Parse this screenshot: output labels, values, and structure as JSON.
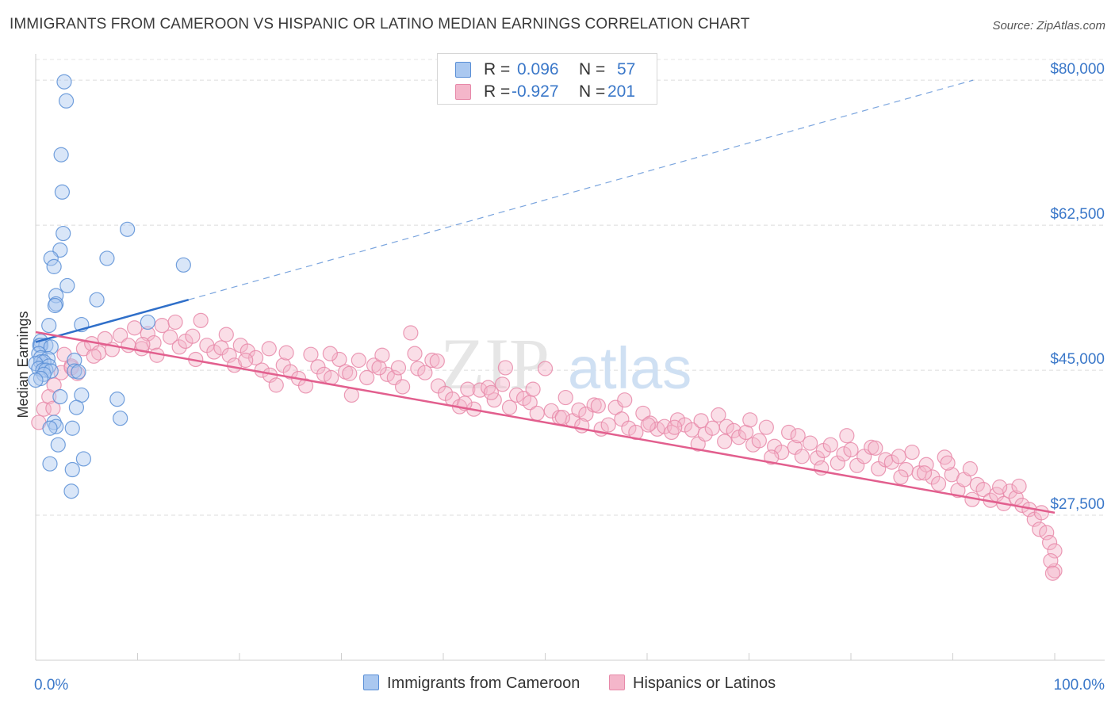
{
  "title": "IMMIGRANTS FROM CAMEROON VS HISPANIC OR LATINO MEDIAN EARNINGS CORRELATION CHART",
  "source": "Source: ZipAtlas.com",
  "watermark": {
    "zip": "ZIP",
    "atlas": "atlas"
  },
  "legend": {
    "rows": [
      {
        "r_label": "R =",
        "r_value": "0.096",
        "n_label": "N =",
        "n_value": "57"
      },
      {
        "r_label": "R =",
        "r_value": "-0.927",
        "n_label": "N =",
        "n_value": "201"
      }
    ]
  },
  "bottom_legend": {
    "series1": "Immigrants from Cameroon",
    "series2": "Hispanics or Latinos"
  },
  "colors": {
    "blue_fill": "#aac8f0",
    "blue_stroke": "#5a8fd6",
    "blue_line": "#2f6fc9",
    "pink_fill": "#f4b6ca",
    "pink_stroke": "#e789a9",
    "pink_line": "#e25f8e",
    "axis_label": "#3b78c9"
  },
  "chart_data": {
    "type": "scatter",
    "title": "IMMIGRANTS FROM CAMEROON VS HISPANIC OR LATINO MEDIAN EARNINGS CORRELATION CHART",
    "xlabel": "",
    "ylabel": "Median Earnings",
    "xlim": [
      0,
      100
    ],
    "ylim": [
      10000,
      82500
    ],
    "x_tick_labels": [
      "0.0%",
      "100.0%"
    ],
    "y_ticks": [
      27500,
      45000,
      62500,
      80000
    ],
    "y_tick_labels": [
      "$27,500",
      "$45,000",
      "$62,500",
      "$80,000"
    ],
    "grid": "horizontal dashed",
    "series": [
      {
        "name": "Immigrants from Cameroon",
        "color": "#5a8fd6",
        "trend": {
          "x": [
            0,
            15
          ],
          "y": [
            48400,
            53500
          ],
          "extended_to": [
            92,
            80000
          ]
        },
        "points": [
          [
            2.8,
            79800
          ],
          [
            3,
            77500
          ],
          [
            2.5,
            71000
          ],
          [
            2.6,
            66500
          ],
          [
            2.7,
            61500
          ],
          [
            9,
            62000
          ],
          [
            2.4,
            59500
          ],
          [
            1.5,
            58500
          ],
          [
            7,
            58500
          ],
          [
            1.8,
            57500
          ],
          [
            14.5,
            57700
          ],
          [
            3.1,
            55200
          ],
          [
            2,
            54000
          ],
          [
            6,
            53500
          ],
          [
            2,
            53000
          ],
          [
            1.9,
            52800
          ],
          [
            11,
            50800
          ],
          [
            4.5,
            50500
          ],
          [
            1.3,
            50400
          ],
          [
            0.5,
            48500
          ],
          [
            0.4,
            48000
          ],
          [
            1,
            48000
          ],
          [
            0.5,
            48000
          ],
          [
            1.5,
            47800
          ],
          [
            0.3,
            47000
          ],
          [
            0.5,
            46500
          ],
          [
            1.2,
            46400
          ],
          [
            3.8,
            46200
          ],
          [
            0.5,
            46000
          ],
          [
            0.8,
            46000
          ],
          [
            0,
            45800
          ],
          [
            1.3,
            45500
          ],
          [
            0.3,
            45200
          ],
          [
            0.7,
            45000
          ],
          [
            1,
            45000
          ],
          [
            1.5,
            44900
          ],
          [
            3.8,
            44900
          ],
          [
            4.2,
            44800
          ],
          [
            0.8,
            44500
          ],
          [
            0.5,
            44000
          ],
          [
            0,
            43800
          ],
          [
            4.5,
            42000
          ],
          [
            2.4,
            41800
          ],
          [
            8,
            41500
          ],
          [
            4,
            40500
          ],
          [
            8.3,
            39200
          ],
          [
            1.8,
            38700
          ],
          [
            2,
            38200
          ],
          [
            3.6,
            38000
          ],
          [
            1.4,
            38000
          ],
          [
            2.2,
            36000
          ],
          [
            4.7,
            34300
          ],
          [
            1.4,
            33700
          ],
          [
            3.6,
            33000
          ],
          [
            3.5,
            30400
          ]
        ]
      },
      {
        "name": "Hispanics or Latinos",
        "color": "#e789a9",
        "trend": {
          "x": [
            0,
            100
          ],
          "y": [
            49600,
            27800
          ]
        },
        "points": [
          [
            0.3,
            38700
          ],
          [
            0.8,
            40300
          ],
          [
            1.3,
            41800
          ],
          [
            1.8,
            43200
          ],
          [
            2.5,
            44700
          ],
          [
            3.5,
            45500
          ],
          [
            4.1,
            44600
          ],
          [
            2.8,
            46900
          ],
          [
            4.7,
            47600
          ],
          [
            5.5,
            48200
          ],
          [
            6.2,
            47100
          ],
          [
            6.8,
            48800
          ],
          [
            7.5,
            47500
          ],
          [
            8.3,
            49200
          ],
          [
            9.1,
            48000
          ],
          [
            9.7,
            50100
          ],
          [
            10.4,
            47600
          ],
          [
            11,
            49400
          ],
          [
            11.6,
            48300
          ],
          [
            12.4,
            50400
          ],
          [
            13.2,
            49000
          ],
          [
            14.1,
            47800
          ],
          [
            14.7,
            48500
          ],
          [
            15.4,
            49100
          ],
          [
            16.2,
            51000
          ],
          [
            16.8,
            48000
          ],
          [
            17.5,
            47200
          ],
          [
            18.2,
            47700
          ],
          [
            19,
            46800
          ],
          [
            19.5,
            45600
          ],
          [
            20.1,
            48000
          ],
          [
            20.8,
            47300
          ],
          [
            21.6,
            46500
          ],
          [
            22.2,
            45000
          ],
          [
            23,
            44400
          ],
          [
            23.6,
            43200
          ],
          [
            24.3,
            45600
          ],
          [
            25,
            44800
          ],
          [
            25.8,
            44000
          ],
          [
            26.5,
            43100
          ],
          [
            27,
            46900
          ],
          [
            27.7,
            45400
          ],
          [
            28.3,
            44500
          ],
          [
            29,
            44100
          ],
          [
            29.8,
            46300
          ],
          [
            30.4,
            44800
          ],
          [
            31,
            42000
          ],
          [
            31.7,
            46200
          ],
          [
            32.5,
            44100
          ],
          [
            33.2,
            45600
          ],
          [
            34,
            46800
          ],
          [
            34.5,
            44500
          ],
          [
            35.2,
            44100
          ],
          [
            36,
            43000
          ],
          [
            36.8,
            49500
          ],
          [
            37.5,
            45200
          ],
          [
            38.2,
            44700
          ],
          [
            38.9,
            46200
          ],
          [
            39.5,
            43100
          ],
          [
            40.2,
            42200
          ],
          [
            40.9,
            41500
          ],
          [
            41.6,
            40600
          ],
          [
            42.4,
            42700
          ],
          [
            43,
            40300
          ],
          [
            43.6,
            42600
          ],
          [
            44.4,
            42900
          ],
          [
            45,
            41400
          ],
          [
            45.8,
            43300
          ],
          [
            46.5,
            40500
          ],
          [
            47.2,
            42000
          ],
          [
            47.9,
            41600
          ],
          [
            48.5,
            41100
          ],
          [
            49.2,
            39800
          ],
          [
            50,
            45200
          ],
          [
            50.6,
            40100
          ],
          [
            51.4,
            39300
          ],
          [
            52,
            41700
          ],
          [
            52.7,
            38900
          ],
          [
            53.3,
            40200
          ],
          [
            54,
            39700
          ],
          [
            54.8,
            40800
          ],
          [
            55.5,
            37900
          ],
          [
            56.2,
            38400
          ],
          [
            56.9,
            40500
          ],
          [
            57.5,
            39100
          ],
          [
            58.2,
            38000
          ],
          [
            58.9,
            37500
          ],
          [
            59.6,
            39800
          ],
          [
            60.3,
            38600
          ],
          [
            61,
            37900
          ],
          [
            61.7,
            38200
          ],
          [
            62.4,
            37500
          ],
          [
            63,
            39000
          ],
          [
            63.7,
            38400
          ],
          [
            64.4,
            37800
          ],
          [
            65,
            36100
          ],
          [
            65.7,
            37300
          ],
          [
            66.4,
            38000
          ],
          [
            67,
            39600
          ],
          [
            67.8,
            38200
          ],
          [
            68.5,
            37700
          ],
          [
            69,
            36900
          ],
          [
            69.7,
            37500
          ],
          [
            70.4,
            36000
          ],
          [
            71,
            36500
          ],
          [
            71.7,
            38100
          ],
          [
            72.5,
            35800
          ],
          [
            73.2,
            35100
          ],
          [
            73.9,
            37500
          ],
          [
            74.5,
            35700
          ],
          [
            75.2,
            34600
          ],
          [
            76,
            36200
          ],
          [
            76.7,
            34400
          ],
          [
            77.3,
            35300
          ],
          [
            78,
            36000
          ],
          [
            78.7,
            33800
          ],
          [
            79.3,
            34900
          ],
          [
            80,
            35400
          ],
          [
            80.6,
            33500
          ],
          [
            81.3,
            34600
          ],
          [
            82,
            35700
          ],
          [
            82.7,
            33100
          ],
          [
            83.4,
            34200
          ],
          [
            84,
            33900
          ],
          [
            84.7,
            34600
          ],
          [
            85.4,
            33000
          ],
          [
            86,
            35100
          ],
          [
            86.7,
            32600
          ],
          [
            87.4,
            33600
          ],
          [
            88,
            32100
          ],
          [
            88.6,
            31300
          ],
          [
            89.2,
            34500
          ],
          [
            89.9,
            32400
          ],
          [
            90.5,
            30500
          ],
          [
            91.1,
            31800
          ],
          [
            91.7,
            33100
          ],
          [
            92.4,
            31200
          ],
          [
            93,
            30600
          ],
          [
            93.7,
            29300
          ],
          [
            94.3,
            30000
          ],
          [
            95,
            28900
          ],
          [
            95.6,
            30400
          ],
          [
            96.2,
            29600
          ],
          [
            96.8,
            28700
          ],
          [
            97.5,
            28200
          ],
          [
            98,
            27000
          ],
          [
            98.5,
            25800
          ],
          [
            99.2,
            25400
          ],
          [
            99.5,
            24200
          ],
          [
            100,
            23200
          ],
          [
            100,
            20800
          ],
          [
            99.6,
            22000
          ],
          [
            1.7,
            40400
          ],
          [
            3.5,
            45300
          ],
          [
            5.7,
            46700
          ],
          [
            10.5,
            48100
          ],
          [
            11.9,
            46800
          ],
          [
            13.7,
            50800
          ],
          [
            15.7,
            46300
          ],
          [
            18.7,
            49300
          ],
          [
            20.6,
            46200
          ],
          [
            22.9,
            47600
          ],
          [
            24.6,
            47100
          ],
          [
            28.9,
            47000
          ],
          [
            30.8,
            44600
          ],
          [
            33.7,
            45300
          ],
          [
            35.6,
            45300
          ],
          [
            37.2,
            47000
          ],
          [
            39.4,
            46100
          ],
          [
            42.1,
            41000
          ],
          [
            44.7,
            42300
          ],
          [
            46.1,
            45300
          ],
          [
            48.8,
            42700
          ],
          [
            51.7,
            39300
          ],
          [
            53.6,
            38300
          ],
          [
            55.2,
            40700
          ],
          [
            57.8,
            41400
          ],
          [
            60.1,
            38400
          ],
          [
            62.7,
            38100
          ],
          [
            65.3,
            38900
          ],
          [
            67.6,
            36400
          ],
          [
            70.1,
            39000
          ],
          [
            72.2,
            34500
          ],
          [
            74.8,
            37100
          ],
          [
            77.1,
            33200
          ],
          [
            79.6,
            37100
          ],
          [
            82.4,
            35600
          ],
          [
            84.9,
            32100
          ],
          [
            87.2,
            32600
          ],
          [
            89.5,
            33800
          ],
          [
            91.9,
            29400
          ],
          [
            94.6,
            30900
          ],
          [
            96.5,
            31000
          ],
          [
            98.7,
            27800
          ],
          [
            99.8,
            20500
          ]
        ]
      }
    ]
  }
}
